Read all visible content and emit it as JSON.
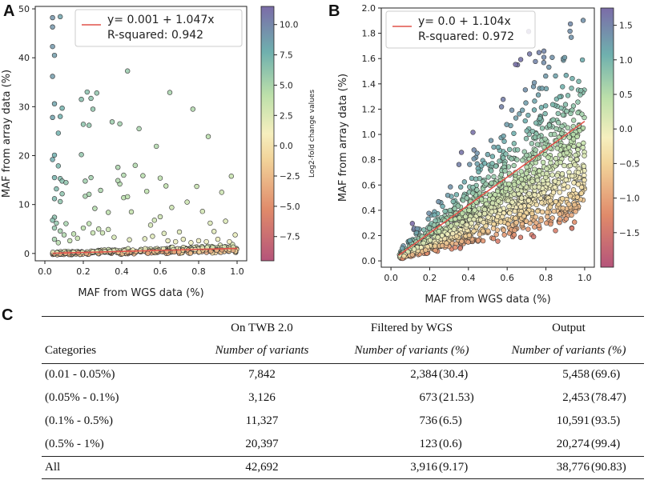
{
  "panels": {
    "a_label": "A",
    "b_label": "B",
    "c_label": "C"
  },
  "chart_data": [
    {
      "type": "scatter",
      "panel": "A",
      "xlabel": "MAF from WGS data (%)",
      "ylabel": "MAF from array data (%)",
      "xlim": [
        -0.05,
        1.05
      ],
      "ylim": [
        -1.5,
        50.5
      ],
      "xticks": [
        "0.0",
        "0.2",
        "0.4",
        "0.6",
        "0.8",
        "1.0"
      ],
      "xtick_values": [
        0.0,
        0.2,
        0.4,
        0.6,
        0.8,
        1.0
      ],
      "yticks": [
        "0",
        "10",
        "20",
        "30",
        "40",
        "50"
      ],
      "ytick_values": [
        0,
        10,
        20,
        30,
        40,
        50
      ],
      "legend": {
        "line1": "y= 0.001 + 1.047x",
        "line2": "R-squared: 0.942",
        "placement": "top-right"
      },
      "fit": {
        "intercept": 0.001,
        "slope": 1.047
      },
      "colorbar": {
        "label": "Log2-fold change values",
        "range": [
          -9.5,
          11.5
        ],
        "ticks": [
          "10.0",
          "7.5",
          "5.0",
          "2.5",
          "0.0",
          "−2.5",
          "−5.0",
          "−7.5"
        ],
        "tick_values": [
          10.0,
          7.5,
          5.0,
          2.5,
          0.0,
          -2.5,
          -5.0,
          -7.5
        ]
      },
      "points": [
        [
          0.04,
          48.2
        ],
        [
          0.08,
          48.4
        ],
        [
          0.04,
          46.3
        ],
        [
          0.04,
          42.3
        ],
        [
          0.05,
          40.5
        ],
        [
          0.04,
          36.2
        ],
        [
          0.05,
          30.6
        ],
        [
          0.04,
          27.8
        ],
        [
          0.08,
          28.0
        ],
        [
          0.09,
          29.7
        ],
        [
          0.07,
          24.6
        ],
        [
          0.05,
          20.1
        ],
        [
          0.04,
          19.2
        ],
        [
          0.07,
          17.9
        ],
        [
          0.05,
          15.5
        ],
        [
          0.08,
          15.3
        ],
        [
          0.09,
          14.8
        ],
        [
          0.11,
          14.5
        ],
        [
          0.06,
          13.2
        ],
        [
          0.09,
          12.2
        ],
        [
          0.05,
          11.2
        ],
        [
          0.08,
          10.6
        ],
        [
          0.05,
          7.4
        ],
        [
          0.04,
          6.8
        ],
        [
          0.06,
          6.2
        ],
        [
          0.05,
          5.2
        ],
        [
          0.08,
          4.6
        ],
        [
          0.1,
          3.8
        ],
        [
          0.05,
          2.9
        ],
        [
          0.07,
          2.2
        ],
        [
          0.19,
          31.5
        ],
        [
          0.22,
          33.0
        ],
        [
          0.24,
          31.7
        ],
        [
          0.25,
          29.5
        ],
        [
          0.27,
          32.8
        ],
        [
          0.2,
          26.4
        ],
        [
          0.23,
          26.2
        ],
        [
          0.19,
          20.2
        ],
        [
          0.21,
          14.8
        ],
        [
          0.24,
          15.5
        ],
        [
          0.21,
          11.7
        ],
        [
          0.23,
          12.1
        ],
        [
          0.26,
          9.2
        ],
        [
          0.2,
          5.2
        ],
        [
          0.23,
          6.1
        ],
        [
          0.25,
          4.2
        ],
        [
          0.28,
          5.0
        ],
        [
          0.3,
          4.2
        ],
        [
          0.29,
          12.9
        ],
        [
          0.33,
          8.4
        ],
        [
          0.35,
          26.9
        ],
        [
          0.39,
          26.5
        ],
        [
          0.39,
          14.2
        ],
        [
          0.38,
          14.9
        ],
        [
          0.38,
          17.6
        ],
        [
          0.41,
          16.0
        ],
        [
          0.41,
          11.4
        ],
        [
          0.43,
          37.3
        ],
        [
          0.43,
          11.6
        ],
        [
          0.45,
          8.5
        ],
        [
          0.47,
          18.0
        ],
        [
          0.49,
          25.5
        ],
        [
          0.51,
          15.9
        ],
        [
          0.53,
          12.7
        ],
        [
          0.55,
          5.8
        ],
        [
          0.57,
          6.8
        ],
        [
          0.58,
          21.9
        ],
        [
          0.6,
          15.4
        ],
        [
          0.6,
          7.5
        ],
        [
          0.62,
          4.1
        ],
        [
          0.65,
          32.9
        ],
        [
          0.63,
          13.8
        ],
        [
          0.66,
          9.4
        ],
        [
          0.7,
          4.4
        ],
        [
          0.74,
          10.5
        ],
        [
          0.77,
          29.5
        ],
        [
          0.79,
          13.7
        ],
        [
          0.82,
          8.6
        ],
        [
          0.85,
          23.9
        ],
        [
          0.86,
          6.2
        ],
        [
          0.88,
          4.5
        ],
        [
          0.92,
          12.5
        ],
        [
          0.94,
          6.6
        ],
        [
          0.97,
          15.8
        ],
        [
          0.99,
          3.8
        ],
        [
          0.33,
          4.9
        ],
        [
          0.36,
          3.3
        ],
        [
          0.44,
          2.8
        ],
        [
          0.52,
          3.0
        ],
        [
          0.56,
          3.5
        ],
        [
          0.64,
          2.6
        ],
        [
          0.68,
          2.4
        ],
        [
          0.72,
          2.9
        ],
        [
          0.76,
          2.2
        ],
        [
          0.8,
          2.6
        ],
        [
          0.84,
          2.4
        ],
        [
          0.9,
          2.9
        ],
        [
          0.96,
          2.4
        ],
        [
          0.13,
          2.6
        ],
        [
          0.15,
          4.0
        ],
        [
          0.17,
          3.1
        ],
        [
          0.11,
          6.1
        ]
      ]
    },
    {
      "type": "scatter",
      "panel": "B",
      "xlabel": "MAF from WGS data (%)",
      "ylabel": "MAF from array data (%)",
      "xlim": [
        -0.05,
        1.05
      ],
      "ylim": [
        -0.05,
        2.0
      ],
      "xticks": [
        "0.0",
        "0.2",
        "0.4",
        "0.6",
        "0.8",
        "1.0"
      ],
      "xtick_values": [
        0.0,
        0.2,
        0.4,
        0.6,
        0.8,
        1.0
      ],
      "yticks": [
        "0.0",
        "0.2",
        "0.4",
        "0.6",
        "0.8",
        "1.0",
        "1.2",
        "1.4",
        "1.6",
        "1.8",
        "2.0"
      ],
      "ytick_values": [
        0.0,
        0.2,
        0.4,
        0.6,
        0.8,
        1.0,
        1.2,
        1.4,
        1.6,
        1.8,
        2.0
      ],
      "legend": {
        "line1": "y= 0.0 + 1.104x",
        "line2": "R-squared: 0.972",
        "placement": "top-left"
      },
      "fit": {
        "intercept": 0.0,
        "slope": 1.104
      },
      "colorbar": {
        "label": "Log2-fold change values",
        "range": [
          -2.0,
          1.75
        ],
        "ticks": [
          "1.5",
          "1.0",
          "0.5",
          "0.0",
          "−0.5",
          "−1.0",
          "−1.5"
        ],
        "tick_values": [
          1.5,
          1.0,
          0.5,
          0.0,
          -0.5,
          -1.0,
          -1.5
        ]
      }
    }
  ],
  "table": {
    "headers_top": [
      "",
      "On TWB 2.0",
      "Filtered by WGS",
      "Output"
    ],
    "headers_sub": [
      "Categories",
      "Number of variants",
      "Number of variants (%)",
      "Number of variants (%)"
    ],
    "rows": [
      {
        "category": "(0.01 - 0.05%)",
        "twb": "7,842",
        "filtered": "2,384",
        "filtered_pct": "(30.4)",
        "output": "5,458",
        "output_pct": "(69.6)"
      },
      {
        "category": "(0.05% - 0.1%)",
        "twb": "3,126",
        "filtered": "673",
        "filtered_pct": "(21.53)",
        "output": "2,453",
        "output_pct": "(78.47)"
      },
      {
        "category": "(0.1% - 0.5%)",
        "twb": "11,327",
        "filtered": "736",
        "filtered_pct": "(6.5)",
        "output": "10,591",
        "output_pct": "(93.5)"
      },
      {
        "category": "(0.5% - 1%)",
        "twb": "20,397",
        "filtered": "123",
        "filtered_pct": "(0.6)",
        "output": "20,274",
        "output_pct": "(99.4)"
      }
    ],
    "total": {
      "category": "All",
      "twb": "42,692",
      "filtered": "3,916",
      "filtered_pct": "(9.17)",
      "output": "38,776",
      "output_pct": "(90.83)"
    }
  }
}
